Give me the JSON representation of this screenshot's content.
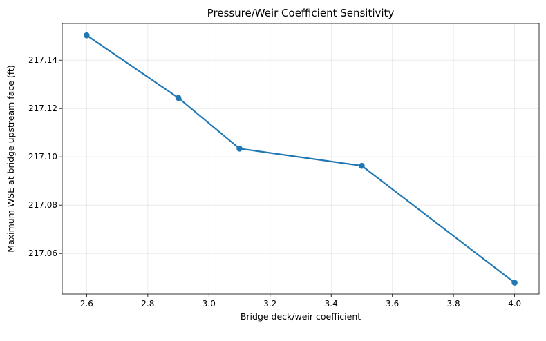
{
  "chart_data": {
    "type": "line",
    "title": "Pressure/Weir Coefficient Sensitivity",
    "xlabel": "Bridge deck/weir coefficient",
    "ylabel": "Maximum WSE at bridge upstream face (ft)",
    "xlim": [
      2.52,
      4.08
    ],
    "ylim": [
      217.0432,
      217.1552
    ],
    "x_ticks": [
      2.6,
      2.8,
      3.0,
      3.2,
      3.4,
      3.6,
      3.8,
      4.0
    ],
    "x_tick_labels": [
      "2.6",
      "2.8",
      "3.0",
      "3.2",
      "3.4",
      "3.6",
      "3.8",
      "4.0"
    ],
    "y_ticks": [
      217.06,
      217.08,
      217.1,
      217.12,
      217.14
    ],
    "y_tick_labels": [
      "217.06",
      "217.08",
      "217.10",
      "217.12",
      "217.14"
    ],
    "grid": true,
    "series": [
      {
        "color": "#1f77b4",
        "marker": "circle",
        "x": [
          2.6,
          2.9,
          3.1,
          3.5,
          4.0
        ],
        "y": [
          217.1503,
          217.1244,
          217.1034,
          217.0963,
          217.0479
        ]
      }
    ]
  }
}
